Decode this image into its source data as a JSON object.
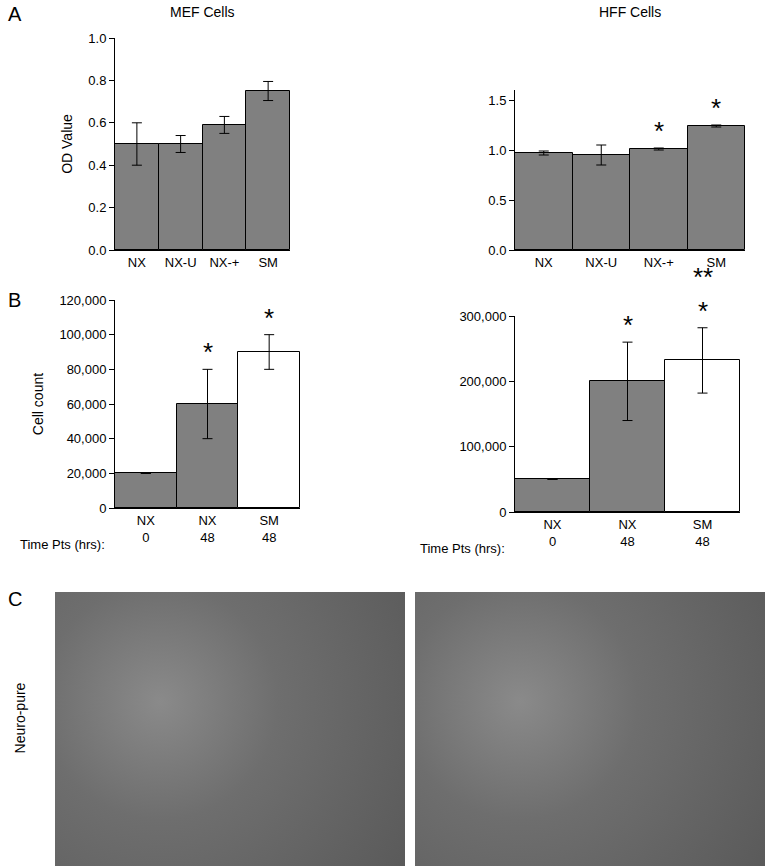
{
  "chart_data": [
    {
      "type": "bar",
      "title": "MEF Cells",
      "ylabel": "OD Value",
      "categories": [
        "NX",
        "NX-U",
        "NX-+",
        "SM"
      ],
      "values": [
        0.5,
        0.5,
        0.59,
        0.75
      ],
      "errors": [
        0.1,
        0.04,
        0.04,
        0.045
      ],
      "significance": [
        null,
        null,
        null,
        null
      ],
      "color": "#808080",
      "ylim": [
        0,
        1.0
      ],
      "yticks": [
        {
          "value": 0,
          "label": "0.0"
        },
        {
          "value": 0.2,
          "label": "0.2"
        },
        {
          "value": 0.4,
          "label": "0.4"
        },
        {
          "value": 0.6,
          "label": "0.6"
        },
        {
          "value": 0.8,
          "label": "0.8"
        },
        {
          "value": 1.0,
          "label": "1.0"
        }
      ],
      "grid": false
    },
    {
      "type": "bar",
      "title": "HFF Cells",
      "categories": [
        "NX",
        "NX-U",
        "NX-+",
        "SM"
      ],
      "values": [
        0.97,
        0.95,
        1.01,
        1.24
      ],
      "errors": [
        0.02,
        0.1,
        0.01,
        0.01
      ],
      "significance": [
        null,
        null,
        "*",
        "*"
      ],
      "color": "#808080",
      "ylim": [
        0,
        1.6
      ],
      "yticks": [
        {
          "value": 0,
          "label": "0.0"
        },
        {
          "value": 0.5,
          "label": "0.5"
        },
        {
          "value": 1.0,
          "label": "1.0"
        },
        {
          "value": 1.5,
          "label": "1.5"
        }
      ],
      "grid": false
    },
    {
      "type": "bar",
      "ylabel": "Cell count",
      "categories": [
        "NX",
        "NX",
        "SM"
      ],
      "time_points": [
        0,
        48,
        48
      ],
      "x_row_label": "Time Pts (hrs):",
      "values": [
        20000,
        60000,
        90000
      ],
      "errors": [
        null,
        20000,
        10000
      ],
      "significance": [
        null,
        "*",
        "*"
      ],
      "colors": [
        "#808080",
        "#808080",
        "#ffffff"
      ],
      "ylim": [
        0,
        120000
      ],
      "yticks": [
        0,
        {
          "value": 20000,
          "label": "20,000"
        },
        {
          "value": 40000,
          "label": "40,000"
        },
        {
          "value": 60000,
          "label": "60,000"
        },
        {
          "value": 80000,
          "label": "80,000"
        },
        {
          "value": 100000,
          "label": "100,000"
        },
        {
          "value": 120000,
          "label": "120,000"
        }
      ],
      "grid": false
    },
    {
      "type": "bar",
      "categories": [
        "NX",
        "NX",
        "SM"
      ],
      "time_points": [
        0,
        48,
        48
      ],
      "x_row_label": "Time Pts (hrs):",
      "values": [
        50000,
        200000,
        232000
      ],
      "errors": [
        null,
        60000,
        50000
      ],
      "significance": [
        null,
        "*",
        "**\n*"
      ],
      "colors": [
        "#808080",
        "#808080",
        "#ffffff"
      ],
      "ylim": [
        0,
        300000
      ],
      "yticks": [
        0,
        {
          "value": 100000,
          "label": "100,000"
        },
        {
          "value": 200000,
          "label": "200,000"
        },
        {
          "value": 300000,
          "label": "300,000"
        }
      ],
      "grid": false
    }
  ],
  "panel_labels": [
    "A",
    "B"
  ],
  "image_panel": {
    "label": "C",
    "row_label": "Neuro-pure"
  }
}
